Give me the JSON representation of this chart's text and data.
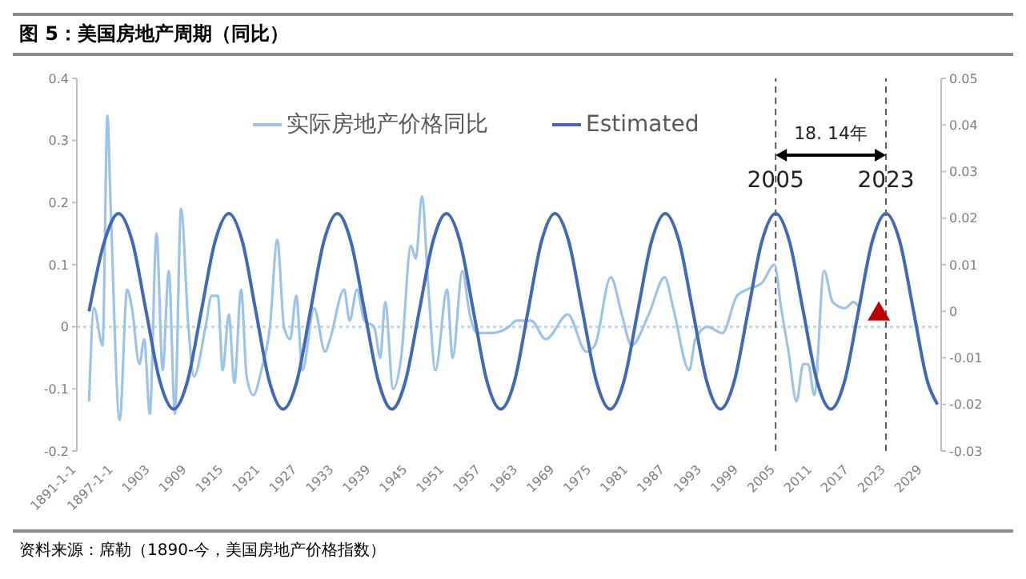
{
  "chart_data": {
    "type": "line",
    "title": "图 5：美国房地产周期（同比）",
    "annotations": [
      "18. 14年",
      "资料来源：席勒（1890-今，美国房地产价格指数）"
    ],
    "legend": "top",
    "xlim": [
      1891,
      2032
    ],
    "xticks": [
      {
        "value": 1891,
        "label": "1891-1-1"
      },
      {
        "value": 1897,
        "label": "1897-1-1"
      },
      1903,
      1909,
      1915,
      1921,
      1927,
      1933,
      1939,
      1945,
      1951,
      1957,
      1963,
      1969,
      1975,
      1981,
      1987,
      1993,
      1999,
      2005,
      2011,
      2017,
      2023,
      2029
    ],
    "ylim": [
      -0.2,
      0.4
    ],
    "yticks": [
      -0.2,
      -0.1,
      0,
      0.1,
      0.2,
      0.3,
      0.4
    ],
    "y2lim": [
      -0.03,
      0.05
    ],
    "y2ticks": [
      -0.03,
      -0.02,
      -0.01,
      0,
      0.01,
      0.02,
      0.03,
      0.04,
      0.05
    ],
    "ref_lines": [
      {
        "axis": "y",
        "value": 0,
        "color": "#bdd7ee",
        "line_style": "dotted"
      },
      {
        "axis": "x",
        "value": 2005,
        "label": "2005",
        "color": "#595959",
        "line_style": "dashed"
      },
      {
        "axis": "x",
        "value": 2023,
        "label": "2023",
        "color": "#595959",
        "line_style": "dashed"
      }
    ],
    "series": [
      {
        "name": "实际房地产价格同比",
        "color": "#9dc3e6",
        "x": [
          1893.0,
          1893.8,
          1895.2,
          1896.0,
          1896.5,
          1898.0,
          1899.2,
          1900.0,
          1901.2,
          1902.0,
          1902.9,
          1904.0,
          1905.0,
          1906.0,
          1907.0,
          1908.0,
          1909.2,
          1910.1,
          1912.0,
          1913.0,
          1914.0,
          1914.8,
          1915.8,
          1916.7,
          1917.8,
          1918.7,
          1919.8,
          1921.1,
          1922.5,
          1923.7,
          1924.8,
          1925.8,
          1926.8,
          1927.8,
          1929.7,
          1931.5,
          1932.3,
          1934.6,
          1935.5,
          1936.7,
          1937.9,
          1939.5,
          1940.5,
          1941.3,
          1942.6,
          1943.9,
          1945.5,
          1946.3,
          1947.3,
          1948.3,
          1949.5,
          1951.4,
          1952.3,
          1953.9,
          1955.1,
          1956.3,
          1958.7,
          1961.5,
          1962.7,
          1965.1,
          1967.5,
          1971.1,
          1974.1,
          1975.5,
          1978.1,
          1979.9,
          1981.5,
          1984.3,
          1986.9,
          1988.3,
          1990.9,
          1991.9,
          1993.9,
          1996.3,
          1998.7,
          2000.3,
          2002.7,
          2004.8,
          2005.9,
          2007.1,
          2008.4,
          2009.5,
          2010.3,
          2011.3,
          2012.9,
          2014.3,
          2016.3,
          2017.7,
          2018.7
        ],
        "values": [
          -0.12,
          0.03,
          -0.03,
          0.34,
          0.2,
          -0.15,
          0.06,
          0.03,
          -0.06,
          -0.02,
          -0.14,
          0.15,
          -0.07,
          0.09,
          -0.14,
          0.19,
          0,
          -0.08,
          0,
          0.05,
          0.05,
          -0.07,
          0.02,
          -0.09,
          0.06,
          -0.08,
          -0.11,
          -0.07,
          0,
          0.14,
          0,
          -0.02,
          0.05,
          -0.07,
          0.03,
          -0.04,
          -0.02,
          0.06,
          0.01,
          0.06,
          0.01,
          0,
          -0.05,
          0.04,
          -0.1,
          -0.05,
          0.13,
          0.11,
          0.21,
          0.07,
          -0.07,
          0.06,
          -0.05,
          0.09,
          0.02,
          -0.01,
          -0.01,
          0,
          0.01,
          0.01,
          -0.02,
          0.02,
          -0.04,
          -0.03,
          0.08,
          0.02,
          -0.03,
          0.02,
          0.08,
          0.03,
          -0.07,
          -0.02,
          0,
          -0.01,
          0.05,
          0.06,
          0.07,
          0.1,
          0.03,
          -0.04,
          -0.12,
          -0.06,
          -0.06,
          -0.11,
          0.09,
          0.04,
          0.03,
          0.04,
          0.03
        ]
      },
      {
        "name": "Estimated",
        "color": "#4169b4",
        "axis": "y2",
        "x": [
          1893.0,
          1895.5,
          1897.8,
          1900.05,
          1902.3,
          1904.55,
          1906.8,
          1909.05,
          1911.3,
          1913.55,
          1915.8,
          1918.0,
          1920.2,
          1922.4,
          1924.65,
          1926.9,
          1929.1,
          1931.3,
          1933.5,
          1935.7,
          1937.95,
          1940.2,
          1942.4,
          1944.6,
          1946.85,
          1949.1,
          1951.3,
          1953.5,
          1955.7,
          1957.9,
          1960.15,
          1962.4,
          1964.6,
          1966.8,
          1969.0,
          1971.25,
          1973.5,
          1975.75,
          1978.0,
          1980.25,
          1982.5,
          1984.75,
          1987.0,
          1989.25,
          1991.5,
          1993.75,
          1996.0,
          1998.25,
          2000.5,
          2002.75,
          2005.0,
          2007.25,
          2009.5,
          2011.75,
          2014.0,
          2016.25,
          2018.5,
          2020.75,
          2023.0,
          2025.25,
          2027.5,
          2029.75,
          2031.4
        ],
        "values": [
          0,
          0.015,
          0.021,
          0.015,
          0,
          -0.015,
          -0.021,
          -0.015,
          0,
          0.015,
          0.021,
          0.015,
          0,
          -0.015,
          -0.021,
          -0.015,
          0,
          0.015,
          0.021,
          0.015,
          0,
          -0.015,
          -0.021,
          -0.015,
          0,
          0.015,
          0.021,
          0.015,
          0,
          -0.015,
          -0.021,
          -0.015,
          0,
          0.015,
          0.021,
          0.015,
          0,
          -0.015,
          -0.021,
          -0.015,
          0,
          0.015,
          0.021,
          0.015,
          0,
          -0.015,
          -0.021,
          -0.015,
          0,
          0.015,
          0.021,
          0.015,
          0,
          -0.015,
          -0.021,
          -0.015,
          0,
          0.015,
          0.021,
          0.015,
          0,
          -0.015,
          -0.02
        ]
      }
    ]
  }
}
